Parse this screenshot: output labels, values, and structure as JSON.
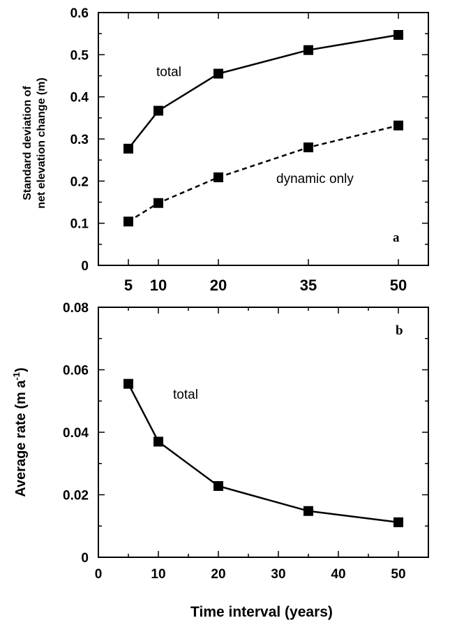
{
  "figure": {
    "xlabel": "Time interval (years)"
  },
  "chart_data": [
    {
      "type": "line",
      "panel_label": "a",
      "ylabel_line1": "Standard deviation of",
      "ylabel_line2": "net elevation change (m)",
      "xlabel": "",
      "x_ticks": [
        5,
        10,
        20,
        35,
        50
      ],
      "xlim": [
        0,
        55
      ],
      "ylim": [
        0,
        0.6
      ],
      "y_ticks": [
        "0",
        "0.1",
        "0.2",
        "0.3",
        "0.4",
        "0.5",
        "0.6"
      ],
      "series": [
        {
          "name": "total",
          "style": "solid",
          "x": [
            5,
            10,
            20,
            35,
            50
          ],
          "y": [
            0.277,
            0.367,
            0.455,
            0.511,
            0.547
          ]
        },
        {
          "name": "dynamic only",
          "style": "dashed",
          "x": [
            5,
            10,
            20,
            35,
            50
          ],
          "y": [
            0.104,
            0.148,
            0.209,
            0.28,
            0.332
          ]
        }
      ]
    },
    {
      "type": "line",
      "panel_label": "b",
      "ylabel_main": "Average rate (m a",
      "ylabel_sup": "-1",
      "ylabel_end": ")",
      "xlabel": "Time interval (years)",
      "xlim": [
        0,
        55
      ],
      "ylim": [
        0,
        0.08
      ],
      "x_ticks": [
        "0",
        "10",
        "20",
        "30",
        "40",
        "50"
      ],
      "y_ticks": [
        "0",
        "0.02",
        "0.04",
        "0.06",
        "0.08"
      ],
      "series": [
        {
          "name": "total",
          "style": "solid",
          "x": [
            5,
            10,
            20,
            35,
            50
          ],
          "y": [
            0.0555,
            0.037,
            0.0228,
            0.0148,
            0.0112
          ]
        }
      ]
    }
  ]
}
